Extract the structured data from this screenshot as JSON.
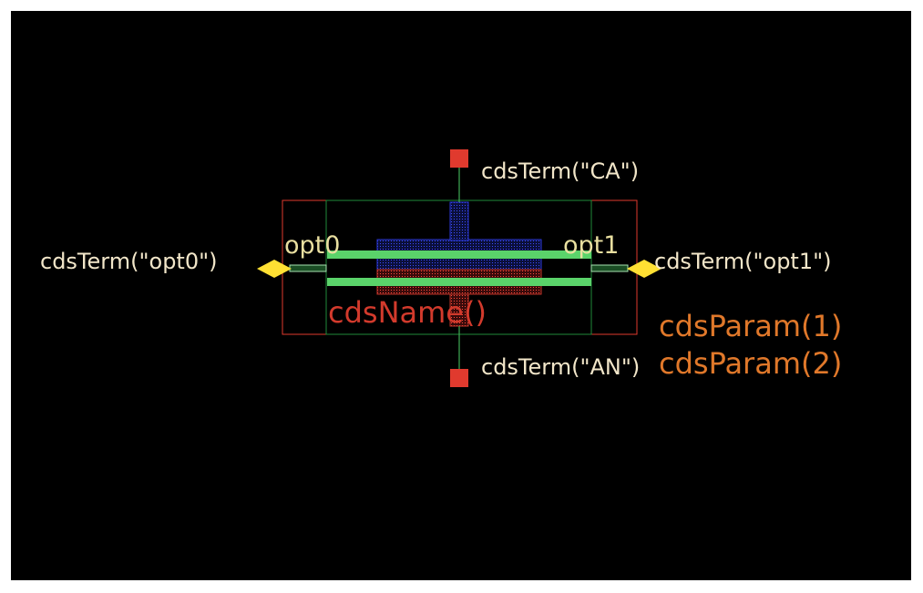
{
  "canvas": {
    "background": "#000000",
    "frame": "#ffffff"
  },
  "colors": {
    "boundary": "#e03a2e",
    "inner_boundary": "#1f8a3a",
    "waveguide": "#5ad36a",
    "blue_layer": "#2b39d8",
    "red_layer": "#c0352a",
    "pin_optical": "#ffe033",
    "pin_electrical": "#e03a2e",
    "term_text": "#f2e6c9",
    "name_text": "#d23a2c",
    "param_text": "#e0782a",
    "pin_text": "#e9dfa0"
  },
  "labels": {
    "term_ca": "cdsTerm(\"CA\")",
    "term_an": "cdsTerm(\"AN\")",
    "term_opt0": "cdsTerm(\"opt0\")",
    "term_opt1": "cdsTerm(\"opt1\")",
    "pin_opt0": "opt0",
    "pin_opt1": "opt1",
    "name": "cdsName()",
    "param1": "cdsParam(1)",
    "param2": "cdsParam(2)"
  },
  "icons": {
    "opt_pin_left": "diamond-pin-icon",
    "opt_pin_right": "diamond-pin-icon",
    "ca_pin": "square-pin-icon",
    "an_pin": "square-pin-icon"
  }
}
